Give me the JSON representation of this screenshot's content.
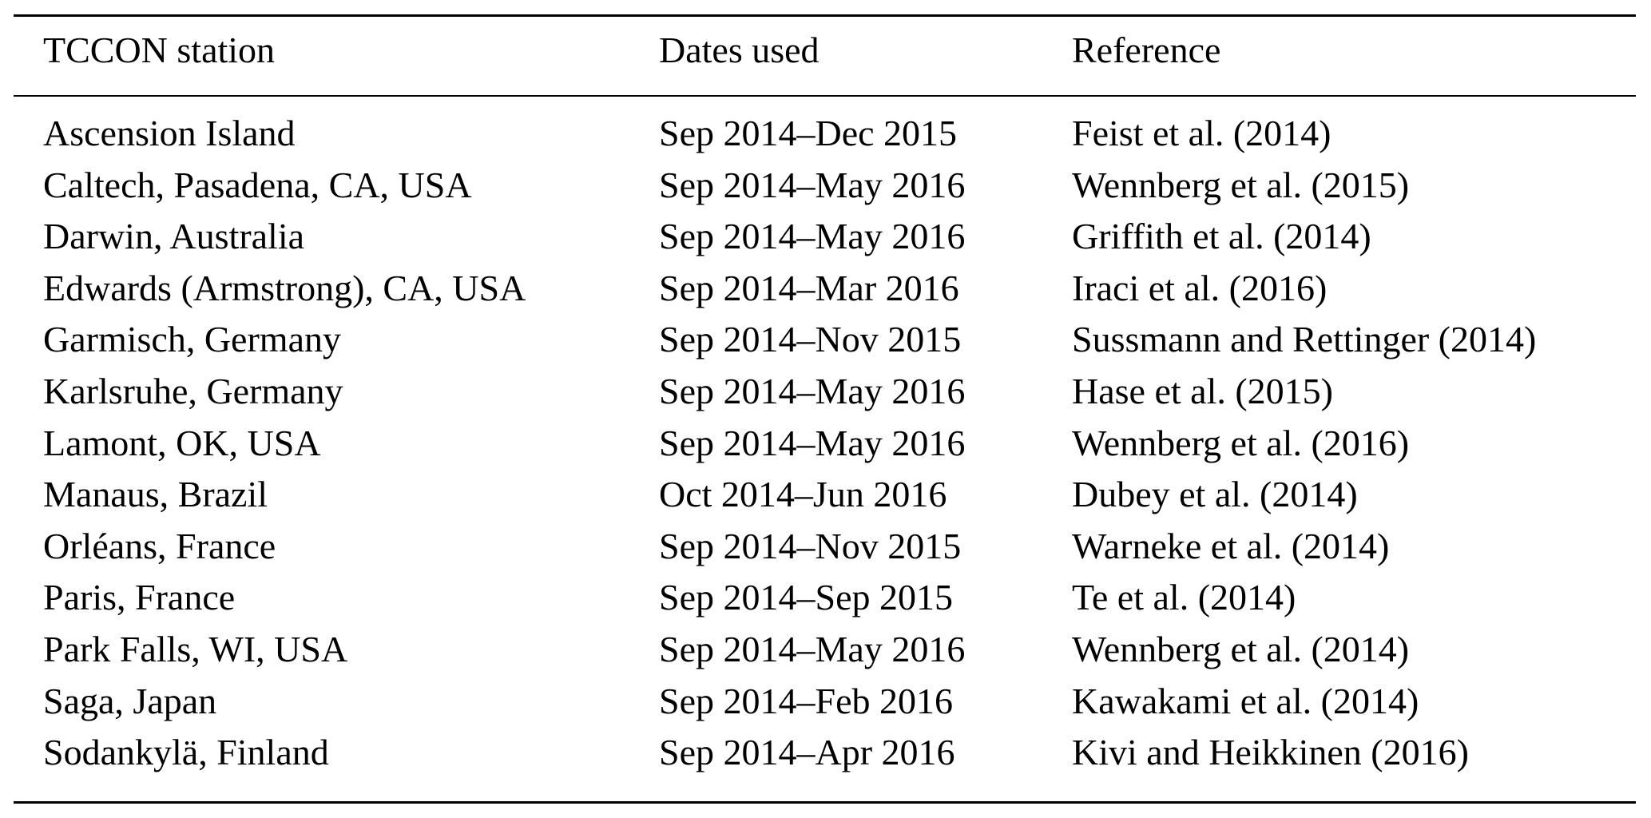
{
  "table": {
    "headers": [
      "TCCON station",
      "Dates used",
      "Reference"
    ],
    "rows": [
      [
        "Ascension Island",
        "Sep 2014–Dec 2015",
        "Feist et al. (2014)"
      ],
      [
        "Caltech, Pasadena, CA, USA",
        "Sep 2014–May 2016",
        "Wennberg et al. (2015)"
      ],
      [
        "Darwin, Australia",
        "Sep 2014–May 2016",
        "Griffith et al. (2014)"
      ],
      [
        "Edwards (Armstrong), CA, USA",
        "Sep 2014–Mar 2016",
        "Iraci et al. (2016)"
      ],
      [
        "Garmisch, Germany",
        "Sep 2014–Nov 2015",
        "Sussmann and Rettinger (2014)"
      ],
      [
        "Karlsruhe, Germany",
        "Sep 2014–May 2016",
        "Hase et al. (2015)"
      ],
      [
        "Lamont, OK, USA",
        "Sep 2014–May 2016",
        "Wennberg et al. (2016)"
      ],
      [
        "Manaus, Brazil",
        "Oct 2014–Jun 2016",
        "Dubey et al. (2014)"
      ],
      [
        "Orléans, France",
        "Sep 2014–Nov 2015",
        "Warneke et al. (2014)"
      ],
      [
        "Paris, France",
        "Sep 2014–Sep 2015",
        "Te et al. (2014)"
      ],
      [
        "Park Falls, WI, USA",
        "Sep 2014–May 2016",
        "Wennberg et al. (2014)"
      ],
      [
        "Saga, Japan",
        "Sep 2014–Feb 2016",
        "Kawakami et al. (2014)"
      ],
      [
        "Sodankylä, Finland",
        "Sep 2014–Apr 2016",
        "Kivi and Heikkinen (2016)"
      ]
    ]
  }
}
